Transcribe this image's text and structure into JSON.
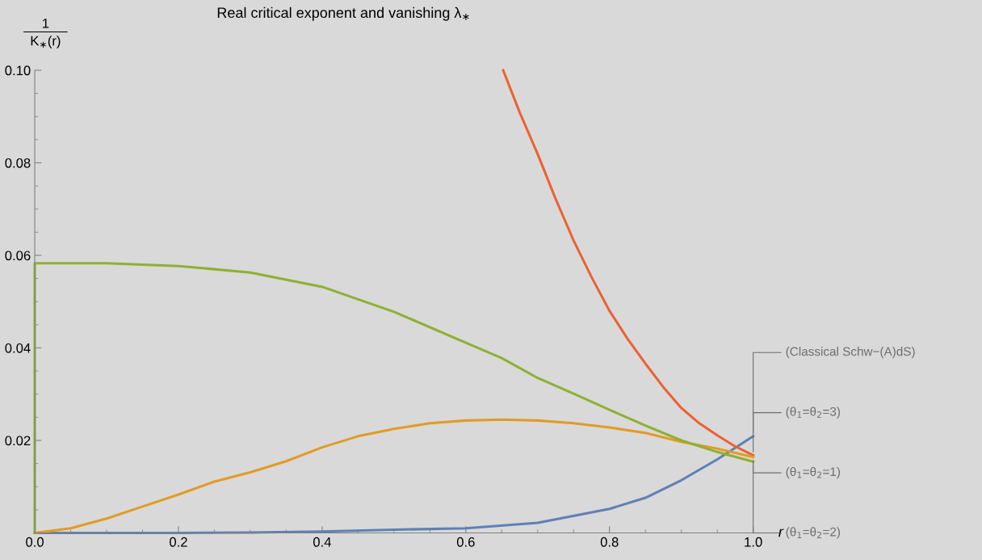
{
  "chart_data": {
    "type": "line",
    "title": "Real critical exponent and vanishing λ$_{∗}$",
    "xlabel": "r",
    "ylabel": "1\nK$_{∗}$(r)",
    "xlim": [
      0,
      1.0
    ],
    "ylim": [
      0,
      0.1
    ],
    "xticks": [
      {
        "value": 0,
        "label": "0.0"
      },
      0.2,
      0.4,
      0.6,
      0.8,
      {
        "value": 1.0,
        "label": "1.0"
      }
    ],
    "yticks": [
      0.02,
      0.04,
      0.06,
      0.08,
      {
        "value": 0.1,
        "label": "0.10"
      }
    ],
    "grid": false,
    "legend": false,
    "marker": "none",
    "line_style": "solid",
    "series": [
      {
        "name": "(Classical Schw−(A)dS)",
        "color": "#5e81b5",
        "x": [
          0,
          0.2,
          0.3,
          0.4,
          0.5,
          0.6,
          0.7,
          0.8,
          0.85,
          0.9,
          0.95,
          1.0
        ],
        "values": [
          0,
          0,
          0.0001,
          0.0003,
          0.0007,
          0.001,
          0.0022,
          0.0052,
          0.0076,
          0.0114,
          0.0159,
          0.0209
        ]
      },
      {
        "name": "(θ$_{1}$=θ$_{2}$=3)",
        "color": "#eb6235",
        "x": [
          0.652,
          0.675,
          0.7,
          0.725,
          0.75,
          0.775,
          0.8,
          0.825,
          0.85,
          0.875,
          0.9,
          0.925,
          0.95,
          0.975,
          1.0
        ],
        "values": [
          0.1,
          0.0909,
          0.0819,
          0.0722,
          0.0632,
          0.0553,
          0.048,
          0.042,
          0.0366,
          0.0315,
          0.027,
          0.0237,
          0.0211,
          0.0187,
          0.0168
        ]
      },
      {
        "name": "(θ$_{1}$=θ$_{2}$=1)",
        "color": "#e19c24",
        "x": [
          0,
          0.05,
          0.1,
          0.15,
          0.2,
          0.25,
          0.3,
          0.35,
          0.4,
          0.45,
          0.5,
          0.55,
          0.6,
          0.65,
          0.7,
          0.75,
          0.8,
          0.85,
          0.9,
          0.95,
          1.0
        ],
        "values": [
          0,
          0.001,
          0.0031,
          0.0057,
          0.0083,
          0.0111,
          0.0131,
          0.0155,
          0.0185,
          0.0209,
          0.0225,
          0.0237,
          0.0243,
          0.0245,
          0.0243,
          0.0237,
          0.0228,
          0.0216,
          0.0197,
          0.0182,
          0.0164
        ]
      },
      {
        "name": "(θ$_{1}$=θ$_{2}$=2)",
        "color": "#8fb032",
        "x": [
          0,
          0,
          0.1,
          0.2,
          0.3,
          0.4,
          0.5,
          0.6,
          0.65,
          0.7,
          0.75,
          0.8,
          0.85,
          0.9,
          0.95,
          1.0
        ],
        "values": [
          0,
          0.0583,
          0.0583,
          0.0577,
          0.0563,
          0.0532,
          0.0478,
          0.0411,
          0.0378,
          0.0335,
          0.0301,
          0.0266,
          0.0232,
          0.02,
          0.0175,
          0.0154
        ]
      }
    ]
  }
}
